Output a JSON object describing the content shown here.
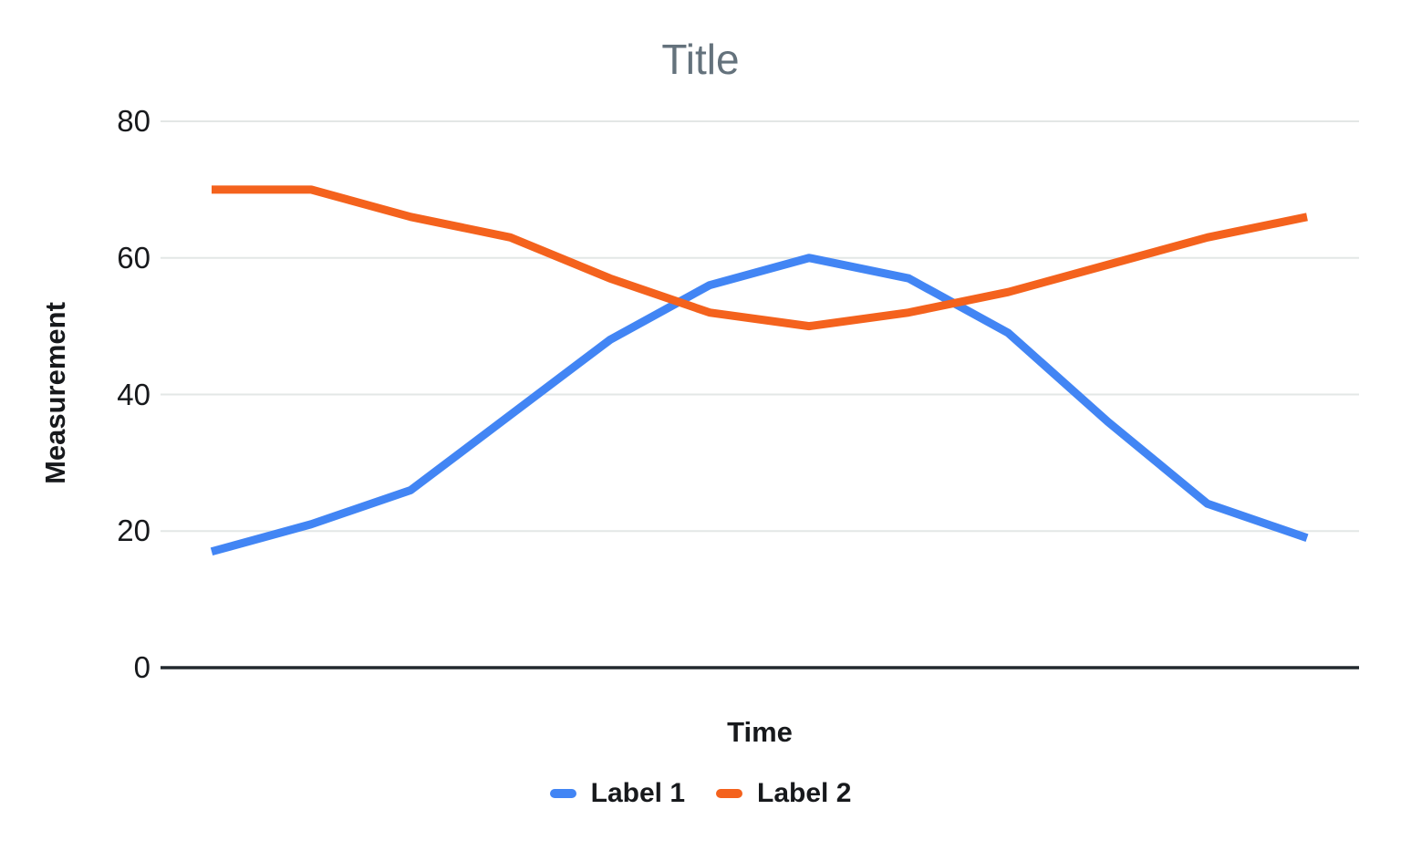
{
  "chart_data": {
    "type": "line",
    "title": "Title",
    "x_axis": {
      "title": "Time",
      "tick_labels_visible": false,
      "num_points": 12
    },
    "y_axis": {
      "title": "Measurement",
      "ticks": [
        80,
        60,
        40,
        20,
        0
      ],
      "range": [
        0,
        80
      ],
      "grid": true
    },
    "series": [
      {
        "name": "Label 1",
        "color": "#4285F4",
        "values": [
          17,
          21,
          26,
          37,
          48,
          56,
          60,
          57,
          49,
          36,
          24,
          19
        ]
      },
      {
        "name": "Label 2",
        "color": "#F4621D",
        "values": [
          70,
          70,
          66,
          63,
          57,
          52,
          50,
          52,
          55,
          59,
          63,
          66
        ]
      }
    ],
    "legend": {
      "position": "bottom",
      "entries": [
        "Label 1",
        "Label 2"
      ]
    }
  },
  "colors": {
    "background": "#ffffff",
    "title_text": "#64727c",
    "axis_text": "#17191c",
    "gridline": "#e3e7e6",
    "zero_axis_line": "#22292e"
  }
}
